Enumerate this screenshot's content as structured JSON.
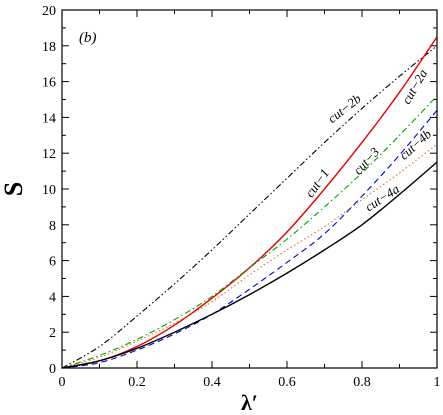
{
  "chart_data": {
    "type": "line",
    "panel_label": "(b)",
    "xlabel": "λ′",
    "ylabel": "S",
    "xlim": [
      0,
      1
    ],
    "ylim": [
      0,
      20
    ],
    "xticks": [
      0,
      0.2,
      0.4,
      0.6,
      0.8,
      1
    ],
    "xtick_labels": [
      "0",
      "0.2",
      "0.4",
      "0.6",
      "0.8",
      "1"
    ],
    "yticks": [
      0,
      2,
      4,
      6,
      8,
      10,
      12,
      14,
      16,
      18,
      20
    ],
    "ytick_labels": [
      "0",
      "2",
      "4",
      "6",
      "8",
      "10",
      "12",
      "14",
      "16",
      "18",
      "20"
    ],
    "grid": false,
    "legend": "none",
    "series": [
      {
        "name": "cut−2b",
        "color": "#000000",
        "dash": "dash-dot-dot",
        "x": [
          0,
          0.1,
          0.2,
          0.3,
          0.4,
          0.5,
          0.6,
          0.7,
          0.8,
          0.9,
          1.0
        ],
        "y": [
          0,
          1.2,
          2.9,
          4.7,
          6.6,
          8.6,
          10.6,
          12.6,
          14.5,
          16.3,
          18.0
        ],
        "label_pos": [
          0.76,
          14.3
        ],
        "label_angle": -38
      },
      {
        "name": "cut−1",
        "color": "#e60000",
        "dash": "solid",
        "x": [
          0,
          0.1,
          0.2,
          0.3,
          0.4,
          0.5,
          0.6,
          0.7,
          0.8,
          0.9,
          1.0
        ],
        "y": [
          0,
          0.4,
          1.2,
          2.4,
          3.9,
          5.6,
          7.6,
          10.0,
          12.6,
          15.4,
          18.5
        ],
        "label_pos": [
          0.69,
          10.2
        ],
        "label_angle": -55
      },
      {
        "name": "cut−2a",
        "color": "#00a000",
        "dash": "dash-dot",
        "x": [
          0,
          0.1,
          0.2,
          0.3,
          0.4,
          0.5,
          0.6,
          0.7,
          0.8,
          0.9,
          1.0
        ],
        "y": [
          0,
          0.7,
          1.6,
          2.7,
          4.0,
          5.6,
          7.2,
          9.0,
          10.9,
          13.0,
          15.2
        ],
        "label_pos": [
          0.95,
          15.6
        ],
        "label_angle": -60
      },
      {
        "name": "cut−3",
        "color": "#0000e0",
        "dash": "dashed",
        "x": [
          0,
          0.1,
          0.2,
          0.3,
          0.4,
          0.5,
          0.6,
          0.7,
          0.8,
          0.9,
          1.0
        ],
        "y": [
          0,
          0.3,
          1.0,
          1.9,
          3.0,
          4.4,
          5.9,
          7.5,
          9.6,
          11.9,
          14.4
        ],
        "label_pos": [
          0.82,
          11.4
        ],
        "label_angle": -48
      },
      {
        "name": "cut−4b",
        "color": "#e07020",
        "dash": "dotted",
        "x": [
          0,
          0.1,
          0.2,
          0.3,
          0.4,
          0.5,
          0.6,
          0.7,
          0.8,
          0.9,
          1.0
        ],
        "y": [
          0,
          0.6,
          1.5,
          2.5,
          3.7,
          5.2,
          6.6,
          7.9,
          9.4,
          10.9,
          12.5
        ],
        "label_pos": [
          0.95,
          12.3
        ],
        "label_angle": -42
      },
      {
        "name": "cut−4a",
        "color": "#000000",
        "dash": "solid",
        "x": [
          0,
          0.1,
          0.2,
          0.3,
          0.4,
          0.5,
          0.6,
          0.7,
          0.8,
          0.9,
          1.0
        ],
        "y": [
          0,
          0.4,
          1.1,
          2.0,
          3.0,
          4.1,
          5.3,
          6.6,
          8.0,
          9.7,
          11.5
        ],
        "label_pos": [
          0.86,
          9.3
        ],
        "label_angle": -33
      }
    ]
  }
}
